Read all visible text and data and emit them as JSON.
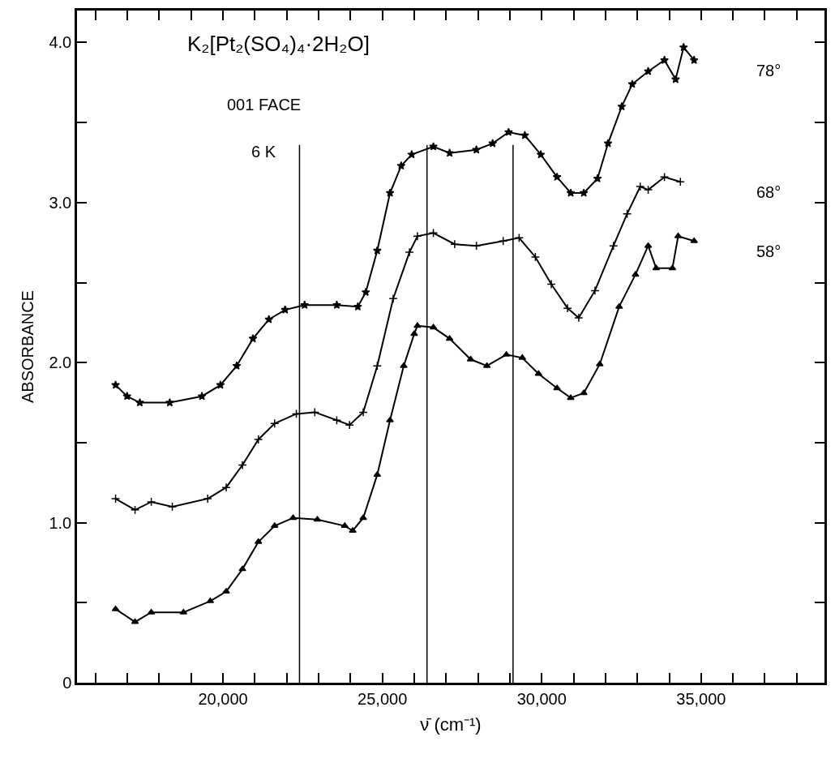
{
  "chart_data": {
    "type": "line",
    "xlabel": "ν̄ (cm⁻¹)",
    "ylabel": "ABSORBANCE",
    "annotations": [
      "K₂[Pt₂(SO₄)₄·2H₂O]",
      "001 FACE",
      "6 K"
    ],
    "xlim": [
      15420,
      38870
    ],
    "ylim": [
      0,
      4.2
    ],
    "xticks": [
      {
        "value": 16000,
        "label": null
      },
      {
        "value": 17000,
        "label": null
      },
      {
        "value": 18000,
        "label": null
      },
      {
        "value": 19000,
        "label": null
      },
      {
        "value": 20000,
        "label": "20,000"
      },
      {
        "value": 21000,
        "label": null
      },
      {
        "value": 22000,
        "label": null
      },
      {
        "value": 23000,
        "label": null
      },
      {
        "value": 24000,
        "label": null
      },
      {
        "value": 25000,
        "label": "25,000"
      },
      {
        "value": 26000,
        "label": null
      },
      {
        "value": 27000,
        "label": null
      },
      {
        "value": 28000,
        "label": null
      },
      {
        "value": 29000,
        "label": null
      },
      {
        "value": 30000,
        "label": "30,000"
      },
      {
        "value": 31000,
        "label": null
      },
      {
        "value": 32000,
        "label": null
      },
      {
        "value": 33000,
        "label": null
      },
      {
        "value": 34000,
        "label": null
      },
      {
        "value": 35000,
        "label": "35,000"
      },
      {
        "value": 36000,
        "label": null
      },
      {
        "value": 37000,
        "label": null
      },
      {
        "value": 38000,
        "label": null
      }
    ],
    "yticks": [
      0,
      {
        "value": 0.5,
        "label": null
      },
      {
        "value": 1,
        "label": "1.0"
      },
      {
        "value": 1.5,
        "label": null
      },
      {
        "value": 2,
        "label": "2.0"
      },
      {
        "value": 2.5,
        "label": null
      },
      {
        "value": 3,
        "label": "3.0"
      },
      {
        "value": 3.5,
        "label": null
      },
      {
        "value": 4,
        "label": "4.0"
      }
    ],
    "grid": false,
    "legend": "right",
    "ref_lines": [
      {
        "axis": "x",
        "value": 22400,
        "color": "#000000"
      },
      {
        "axis": "x",
        "value": 26400,
        "color": "#000000"
      },
      {
        "axis": "x",
        "value": 29100,
        "color": "#000000"
      }
    ],
    "series": [
      {
        "name": "78°",
        "color": "#000000",
        "marker": "star",
        "x": [
          16630,
          16990,
          17390,
          18330,
          19340,
          19920,
          20430,
          20940,
          21440,
          21950,
          22560,
          23570,
          24230,
          24480,
          24840,
          25240,
          25590,
          25920,
          26600,
          27110,
          27950,
          28460,
          28960,
          29470,
          29970,
          30480,
          30910,
          31320,
          31750,
          32080,
          32510,
          32840,
          33340,
          33850,
          34200,
          34450,
          34780
        ],
        "values": [
          1.86,
          1.79,
          1.75,
          1.75,
          1.79,
          1.86,
          1.98,
          2.15,
          2.27,
          2.33,
          2.36,
          2.36,
          2.35,
          2.44,
          2.7,
          3.06,
          3.23,
          3.3,
          3.35,
          3.31,
          3.33,
          3.37,
          3.44,
          3.42,
          3.3,
          3.16,
          3.06,
          3.06,
          3.15,
          3.37,
          3.6,
          3.74,
          3.82,
          3.89,
          3.77,
          3.97,
          3.89
        ]
      },
      {
        "name": "68°",
        "color": "#000000",
        "marker": "cross",
        "x": [
          16630,
          17240,
          17750,
          18410,
          19520,
          20100,
          20610,
          21110,
          21620,
          22300,
          22880,
          23570,
          23970,
          24400,
          24840,
          25340,
          25850,
          26100,
          26600,
          27270,
          27950,
          28790,
          29290,
          29800,
          30300,
          30810,
          31160,
          31670,
          32250,
          32680,
          33090,
          33340,
          33850,
          34350
        ],
        "values": [
          1.15,
          1.08,
          1.13,
          1.1,
          1.15,
          1.22,
          1.36,
          1.52,
          1.62,
          1.68,
          1.69,
          1.64,
          1.61,
          1.69,
          1.98,
          2.4,
          2.69,
          2.79,
          2.81,
          2.74,
          2.73,
          2.76,
          2.78,
          2.66,
          2.49,
          2.34,
          2.28,
          2.45,
          2.73,
          2.93,
          3.1,
          3.08,
          3.16,
          3.13
        ]
      },
      {
        "name": "58°",
        "color": "#000000",
        "marker": "triangle",
        "x": [
          16630,
          17240,
          17750,
          18760,
          19600,
          20100,
          20610,
          21110,
          21620,
          22200,
          22960,
          23820,
          24070,
          24400,
          24840,
          25240,
          25670,
          26000,
          26100,
          26600,
          27110,
          27770,
          28280,
          28890,
          29390,
          29900,
          30480,
          30910,
          31320,
          31820,
          32430,
          32940,
          33340,
          33590,
          34100,
          34280,
          34780
        ],
        "values": [
          0.46,
          0.38,
          0.44,
          0.44,
          0.51,
          0.57,
          0.71,
          0.88,
          0.98,
          1.03,
          1.02,
          0.98,
          0.95,
          1.03,
          1.3,
          1.64,
          1.98,
          2.18,
          2.23,
          2.22,
          2.15,
          2.02,
          1.98,
          2.05,
          2.03,
          1.93,
          1.84,
          1.78,
          1.81,
          1.99,
          2.35,
          2.55,
          2.73,
          2.59,
          2.59,
          2.79,
          2.76
        ]
      }
    ]
  }
}
